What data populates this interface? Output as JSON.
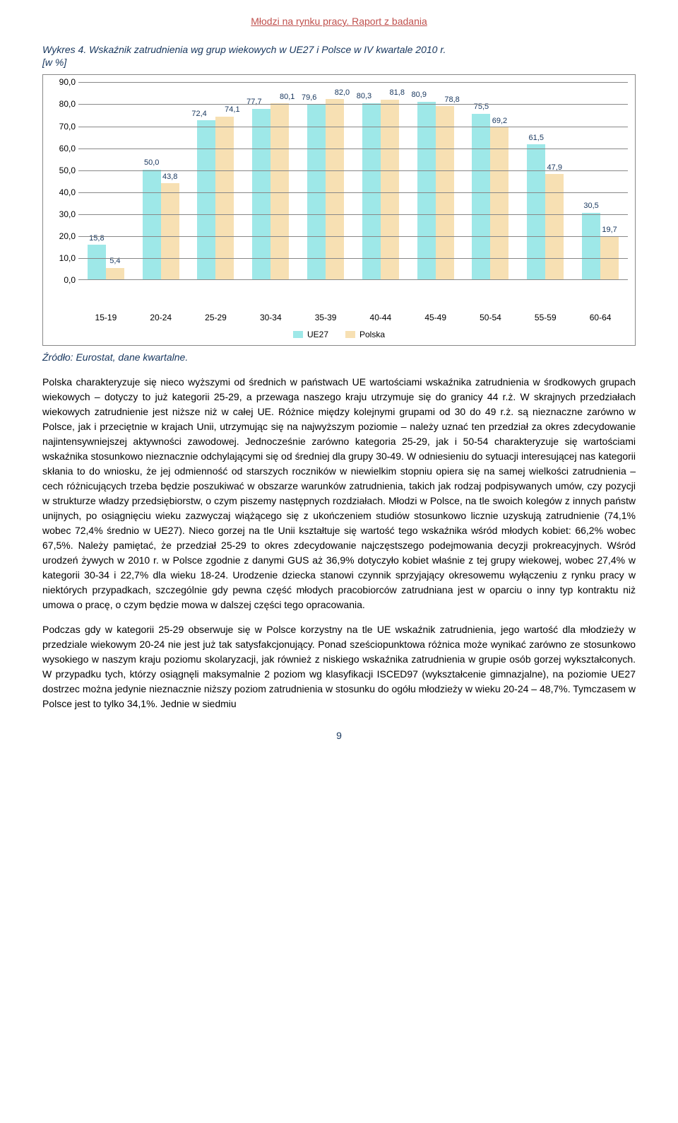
{
  "header": "Młodzi na rynku pracy. Raport z badania",
  "chart_title_line1": "Wykres 4. Wskaźnik zatrudnienia wg grup wiekowych w UE27 i Polsce w IV kwartale 2010 r.",
  "chart_title_line2": "[w %]",
  "chart": {
    "type": "bar",
    "ylim": [
      0,
      90
    ],
    "ytick_step": 10,
    "yticks": [
      "0,0",
      "10,0",
      "20,0",
      "30,0",
      "40,0",
      "50,0",
      "60,0",
      "70,0",
      "80,0",
      "90,0"
    ],
    "categories": [
      "15-19",
      "20-24",
      "25-29",
      "30-34",
      "35-39",
      "40-44",
      "45-49",
      "50-54",
      "55-59",
      "60-64"
    ],
    "series": [
      {
        "name": "UE27",
        "color": "#9ee8e8",
        "values": [
          15.8,
          50.0,
          72.4,
          77.7,
          79.6,
          80.3,
          80.9,
          75.5,
          61.5,
          30.5
        ],
        "labels": [
          "15,8",
          "50,0",
          "72,4",
          "77,7",
          "79,6",
          "80,3",
          "80,9",
          "75,5",
          "61,5",
          "30,5"
        ]
      },
      {
        "name": "Polska",
        "color": "#f7e0b3",
        "values": [
          5.4,
          43.8,
          74.1,
          80.1,
          82.0,
          81.8,
          78.8,
          69.2,
          47.9,
          19.7
        ],
        "labels": [
          "5,4",
          "43,8",
          "74,1",
          "80,1",
          "82,0",
          "81,8",
          "78,8",
          "69,2",
          "47,9",
          "19,7"
        ]
      }
    ],
    "grid_color": "#888888",
    "background_color": "#ffffff",
    "label_color": "#17365d"
  },
  "legend": {
    "series1": "UE27",
    "series2": "Polska"
  },
  "source": "Źródło: Eurostat, dane kwartalne.",
  "para1": "Polska charakteryzuje się nieco wyższymi od średnich w państwach UE wartościami wskaźnika zatrudnienia w środkowych grupach wiekowych – dotyczy to już kategorii 25-29, a przewaga naszego kraju utrzymuje się do granicy 44 r.ż. W skrajnych przedziałach wiekowych zatrudnienie jest niższe niż w całej UE. Różnice między kolejnymi grupami od 30 do 49 r.ż. są nieznaczne zarówno w Polsce, jak i przeciętnie w krajach Unii, utrzymując się na najwyższym poziomie – należy uznać ten przedział za okres zdecydowanie najintensywniejszej aktywności zawodowej. Jednocześnie zarówno kategoria 25-29, jak i 50-54 charakteryzuje się wartościami wskaźnika stosunkowo nieznacznie odchylającymi się od średniej dla grupy 30-49. W odniesieniu do sytuacji interesującej nas kategorii skłania to do wniosku, że jej odmienność od starszych roczników w niewielkim stopniu opiera się na samej wielkości zatrudnienia – cech różnicujących trzeba będzie poszukiwać w obszarze warunków zatrudnienia, takich jak rodzaj podpisywanych umów, czy pozycji w strukturze władzy przedsiębiorstw, o czym piszemy następnych rozdziałach. Młodzi w Polsce, na tle swoich kolegów z innych państw unijnych, po osiągnięciu wieku zazwyczaj wiążącego się z ukończeniem studiów stosunkowo licznie uzyskują zatrudnienie (74,1% wobec 72,4% średnio w UE27). Nieco gorzej na tle Unii kształtuje się wartość tego wskaźnika wśród młodych kobiet: 66,2% wobec 67,5%. Należy pamiętać, że przedział 25-29 to okres zdecydowanie najczęstszego podejmowania decyzji prokreacyjnych. Wśród urodzeń żywych w 2010 r. w Polsce zgodnie z danymi GUS aż 36,9% dotyczyło kobiet właśnie z tej grupy wiekowej, wobec 27,4% w kategorii 30-34 i 22,7% dla wieku 18-24. Urodzenie dziecka stanowi czynnik sprzyjający okresowemu wyłączeniu z rynku pracy w niektórych przypadkach, szczególnie gdy pewna część młodych pracobiorców zatrudniana jest w oparciu o inny typ kontraktu niż umowa o pracę, o czym będzie mowa w dalszej części tego opracowania.",
  "para2": "Podczas gdy w kategorii 25-29 obserwuje się w Polsce korzystny na tle UE wskaźnik zatrudnienia, jego wartość dla młodzieży w przedziale wiekowym 20-24 nie jest już tak satysfakcjonujący. Ponad sześciopunktowa różnica może wynikać zarówno ze stosunkowo wysokiego w naszym kraju poziomu skolaryzacji, jak również z niskiego wskaźnika zatrudnienia w grupie osób gorzej wykształconych. W przypadku tych, którzy osiągnęli maksymalnie 2 poziom wg klasyfikacji ISCED97 (wykształcenie gimnazjalne), na poziomie UE27 dostrzec można jedynie nieznacznie niższy poziom zatrudnienia w stosunku do ogółu młodzieży w wieku 20-24 – 48,7%. Tymczasem w Polsce jest to tylko 34,1%. Jednie w siedmiu",
  "page_number": "9"
}
